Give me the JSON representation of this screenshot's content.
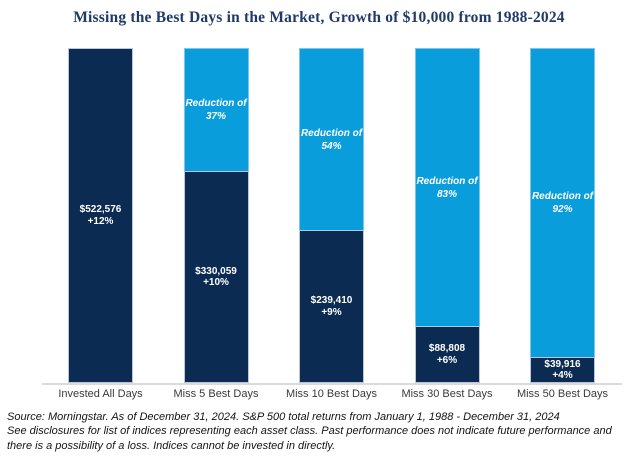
{
  "colors": {
    "title": "#1f3a68",
    "navy_bar": "#0b2b52",
    "light_blue_bar": "#0a9ddb",
    "axis_line": "#dadada"
  },
  "chart_data": {
    "type": "bar",
    "subtype": "stacked-remainder",
    "title": "Missing the Best Days in the Market, Growth of $10,000 from 1988-2024",
    "xlabel": "",
    "ylabel": "",
    "ymax": 522576,
    "grid": false,
    "legend": "none",
    "categories": [
      "Invested All Days",
      "Miss 5 Best Days",
      "Miss 10 Best Days",
      "Miss 30 Best Days",
      "Miss 50 Best Days"
    ],
    "values": [
      522576,
      330059,
      239410,
      88808,
      39916
    ],
    "annualized_returns_pct": [
      12,
      10,
      9,
      6,
      4
    ],
    "reduction_pct": [
      null,
      37,
      54,
      83,
      92
    ],
    "bars": [
      {
        "category": "Invested All Days",
        "value": 522576,
        "value_label": "$522,576",
        "return_label": "+12%",
        "reduction_line1": "",
        "reduction_line2": ""
      },
      {
        "category": "Miss 5 Best Days",
        "value": 330059,
        "value_label": "$330,059",
        "return_label": "+10%",
        "reduction_line1": "Reduction of",
        "reduction_line2": "37%"
      },
      {
        "category": "Miss 10 Best Days",
        "value": 239410,
        "value_label": "$239,410",
        "return_label": "+9%",
        "reduction_line1": "Reduction of",
        "reduction_line2": "54%"
      },
      {
        "category": "Miss 30 Best Days",
        "value": 88808,
        "value_label": "$88,808",
        "return_label": "+6%",
        "reduction_line1": "Reduction of",
        "reduction_line2": "83%"
      },
      {
        "category": "Miss 50 Best Days",
        "value": 39916,
        "value_label": "$39,916",
        "return_label": "+4%",
        "reduction_line1": "Reduction of",
        "reduction_line2": "92%"
      }
    ]
  },
  "footnote": {
    "line1": "Source: Morningstar. As of December 31, 2024. S&P 500 total returns from January 1, 1988 - December 31, 2024",
    "line2": "See disclosures for list of indices representing each asset class. Past performance does not indicate future performance and",
    "line3": "there is a possibility of a loss. Indices cannot be invested in directly."
  }
}
